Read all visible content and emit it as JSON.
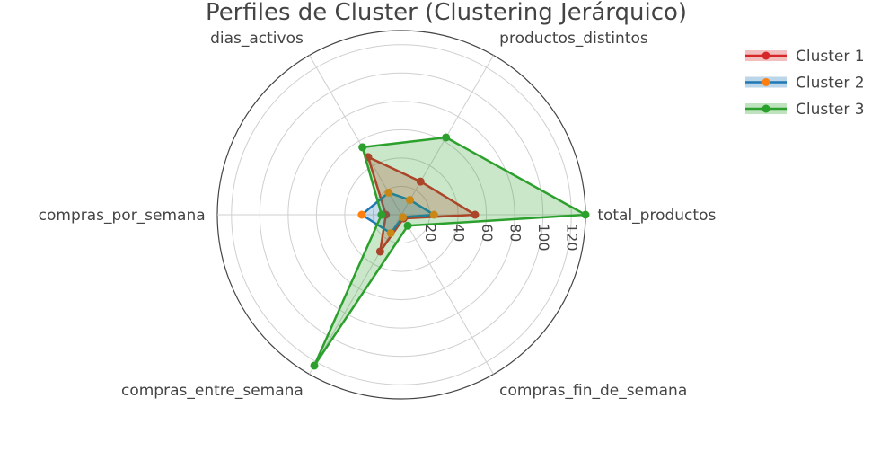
{
  "chart_data": {
    "type": "radar",
    "title": "Perfiles de Cluster (Clustering Jerárquico)",
    "axes": [
      "total_productos",
      "productos_distintos",
      "dias_activos",
      "compras_por_semana",
      "compras_entre_semana",
      "compras_fin_de_semana"
    ],
    "radial_range": [
      0,
      130
    ],
    "radial_ticks": [
      20,
      40,
      60,
      80,
      100,
      120
    ],
    "radial_tick_labels": [
      "20",
      "40",
      "60",
      "80",
      "100",
      "120"
    ],
    "series": [
      {
        "name": "Cluster 1",
        "color": "#d62728",
        "values": [
          52,
          27,
          47,
          11,
          30,
          3
        ]
      },
      {
        "name": "Cluster 2",
        "color": "#1f77b4",
        "values": [
          23,
          12,
          18,
          28,
          15,
          2
        ]
      },
      {
        "name": "Cluster 3",
        "color": "#2ca02c",
        "values": [
          130,
          63,
          55,
          14,
          123,
          9
        ]
      }
    ],
    "legend_position": "top-right"
  }
}
